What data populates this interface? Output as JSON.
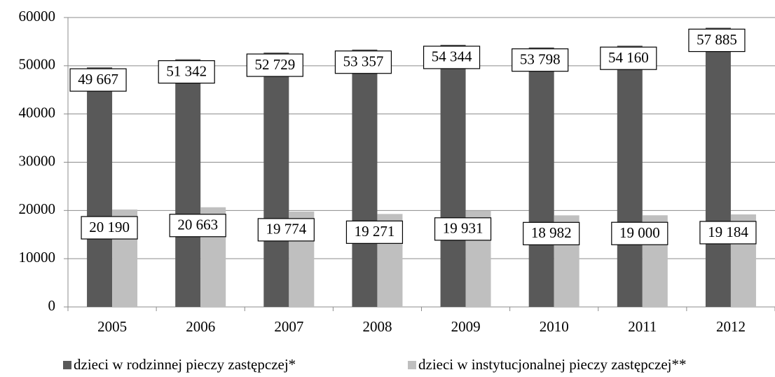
{
  "chart_data": {
    "type": "bar",
    "categories": [
      "2005",
      "2006",
      "2007",
      "2008",
      "2009",
      "2010",
      "2011",
      "2012"
    ],
    "series": [
      {
        "name": "dzieci w rodzinnej pieczy zastępczej*",
        "color": "#595959",
        "values": [
          49667,
          51342,
          52729,
          53357,
          54344,
          53798,
          54160,
          57885
        ],
        "value_labels": [
          "49 667",
          "51 342",
          "52 729",
          "53 357",
          "54 344",
          "53 798",
          "54 160",
          "57 885"
        ]
      },
      {
        "name": "dzieci w instytucjonalnej pieczy zastępczej**",
        "color": "#bfbfbf",
        "values": [
          20190,
          20663,
          19774,
          19271,
          19931,
          18982,
          19000,
          19184
        ],
        "value_labels": [
          "20 190",
          "20 663",
          "19 774",
          "19 271",
          "19 931",
          "18 982",
          "19 000",
          "19 184"
        ]
      }
    ],
    "ylim": [
      0,
      60000
    ],
    "yticks": [
      0,
      10000,
      20000,
      30000,
      40000,
      50000,
      60000
    ],
    "grid": true,
    "legend": "bottom"
  }
}
